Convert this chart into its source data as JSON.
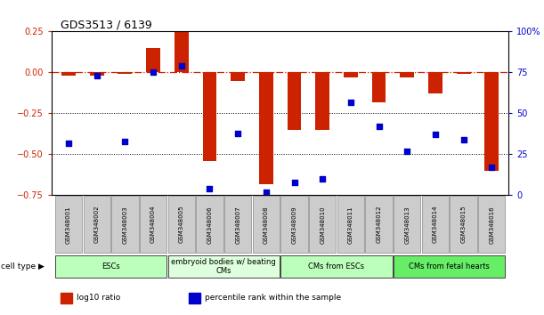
{
  "title": "GDS3513 / 6139",
  "samples": [
    "GSM348001",
    "GSM348002",
    "GSM348003",
    "GSM348004",
    "GSM348005",
    "GSM348006",
    "GSM348007",
    "GSM348008",
    "GSM348009",
    "GSM348010",
    "GSM348011",
    "GSM348012",
    "GSM348013",
    "GSM348014",
    "GSM348015",
    "GSM348016"
  ],
  "log10_ratio": [
    -0.02,
    -0.02,
    -0.01,
    0.15,
    0.25,
    -0.54,
    -0.05,
    -0.68,
    -0.35,
    -0.35,
    -0.03,
    -0.18,
    -0.03,
    -0.13,
    -0.01,
    -0.6
  ],
  "percentile_rank": [
    32,
    73,
    33,
    75,
    79,
    4,
    38,
    2,
    8,
    10,
    57,
    42,
    27,
    37,
    34,
    17
  ],
  "cell_type_groups": [
    {
      "label": "ESCs",
      "start": 0,
      "end": 4,
      "color": "#bbffbb"
    },
    {
      "label": "embryoid bodies w/ beating\nCMs",
      "start": 4,
      "end": 8,
      "color": "#ddffdd"
    },
    {
      "label": "CMs from ESCs",
      "start": 8,
      "end": 12,
      "color": "#bbffbb"
    },
    {
      "label": "CMs from fetal hearts",
      "start": 12,
      "end": 16,
      "color": "#66ee66"
    }
  ],
  "bar_color": "#cc2200",
  "dot_color": "#0000cc",
  "left_ylim": [
    -0.75,
    0.25
  ],
  "right_ylim": [
    0,
    100
  ],
  "left_yticks": [
    -0.75,
    -0.5,
    -0.25,
    0,
    0.25
  ],
  "right_yticks": [
    0,
    25,
    50,
    75,
    100
  ],
  "right_yticklabels": [
    "0",
    "25",
    "50",
    "75",
    "100%"
  ],
  "dotted_line_values": [
    -0.25,
    -0.5
  ],
  "legend_items": [
    {
      "label": "log10 ratio",
      "color": "#cc2200"
    },
    {
      "label": "percentile rank within the sample",
      "color": "#0000cc"
    }
  ]
}
